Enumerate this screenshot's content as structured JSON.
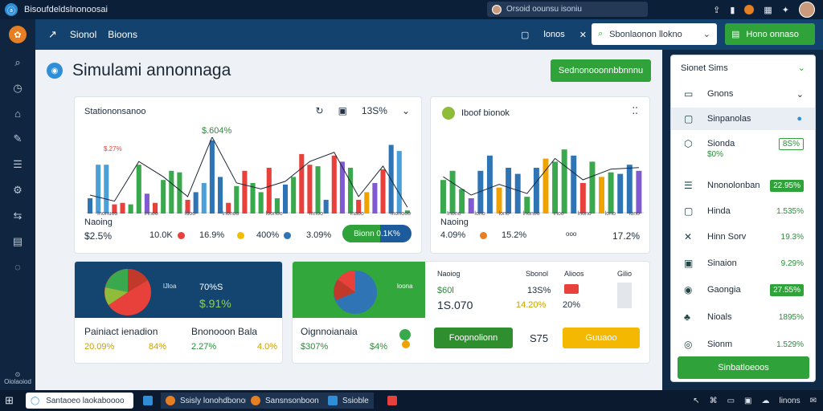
{
  "titlebar": {
    "title": "Bisoufdeldslnonoosai",
    "search": "Orsoid oounsu isoniu"
  },
  "rail": {
    "bottom_label": "Oiolaoiod"
  },
  "topnav": {
    "tab1": "Sionol",
    "tab2": "Bioons",
    "icon_text": "lonos",
    "select": "Sbonlaonon llokno",
    "green_button": "Hono onnaso"
  },
  "page": {
    "title": "Simulami annonnaga",
    "top_button": "Sednonooonnbbnnnu"
  },
  "card1": {
    "title": "Stationonsanoo",
    "peak": "$.604%",
    "marker": "$.27%",
    "pct": "13S%",
    "ticks": [
      "Inonuoo",
      "lnnoo",
      "ldoo",
      "lnonoo",
      "loonoo",
      "lnnoo",
      "Inaoo",
      "lnonooo"
    ],
    "stat_label": "Naoing",
    "stat_value": "$2.5%",
    "s1": "10.0K",
    "s2": "16.9%",
    "s3": "400%",
    "s4": "3.09%",
    "pill": "Bionn 0.1K%",
    "chart_data": {
      "type": "bar",
      "values": [
        10,
        32,
        32,
        6,
        7,
        6,
        32,
        13,
        7,
        22,
        28,
        27,
        9,
        14,
        20,
        48,
        24,
        7,
        18,
        28,
        20,
        14,
        30,
        10,
        19,
        24,
        39,
        32,
        31,
        9,
        38,
        34,
        30,
        9,
        14,
        20,
        29,
        45,
        41,
        2
      ],
      "colors": [
        "#2f74b5",
        "#4ba0d8",
        "#4ba0d8",
        "#e8403a",
        "#e8403a",
        "#3aa84c",
        "#3aa84c",
        "#7f5ad0",
        "#e8403a",
        "#3aa84c",
        "#3aa84c",
        "#3aa84c",
        "#e8403a",
        "#2f74b5",
        "#4ba0d8",
        "#2f74b5",
        "#2f74b5",
        "#e8403a",
        "#3aa84c",
        "#e8403a",
        "#3aa84c",
        "#3aa84c",
        "#e8403a",
        "#3aa84c",
        "#2f74b5",
        "#3aa84c",
        "#e8403a",
        "#e8403a",
        "#3aa84c",
        "#2f74b5",
        "#e8403a",
        "#7f5ad0",
        "#3aa84c",
        "#e8403a",
        "#f0a200",
        "#7f5ad0",
        "#e8403a",
        "#2f74b5",
        "#4ba0d8",
        "#3aa84c"
      ]
    }
  },
  "card2": {
    "title": "Iboof bionok",
    "ticks": [
      "Inono",
      "lono",
      "lono",
      "lnonoo",
      "inoo",
      "lnono",
      "lono",
      "lono"
    ],
    "stat_label": "Naoing",
    "stat_value": "4.09%",
    "s2": "15.2%",
    "s3": "ooo",
    "s4": "17.2%",
    "chart_data": {
      "type": "bar",
      "values": [
        22,
        28,
        16,
        10,
        28,
        38,
        17,
        30,
        26,
        11,
        30,
        36,
        34,
        42,
        38,
        20,
        34,
        24,
        27,
        26,
        32,
        28
      ],
      "colors": [
        "#3aa84c",
        "#3aa84c",
        "#3aa84c",
        "#7f5ad0",
        "#2f74b5",
        "#2f74b5",
        "#f0a200",
        "#2f74b5",
        "#2f74b5",
        "#3aa84c",
        "#2f74b5",
        "#f0a200",
        "#3aa84c",
        "#3aa84c",
        "#2f74b5",
        "#e8403a",
        "#3aa84c",
        "#f0a200",
        "#3aa84c",
        "#2f74b5",
        "#2f74b5",
        "#7f5ad0"
      ]
    }
  },
  "card3": {
    "pie_label": "lJloa",
    "pct": "70%S",
    "value": "$.91%",
    "k1": "Painiact ienadion",
    "k2": "Bnonooon Bala",
    "v1": "20.09%",
    "v2": "84%",
    "v3": "2.27%",
    "v4": "4.0%"
  },
  "card4": {
    "pie_label": "loona",
    "k1": "Oignnoianaia",
    "v1": "$307%",
    "v2": "$4%",
    "col1": "Naoiog",
    "col2": "Sbonol",
    "col3": "Alioos",
    "col4": "Gilio",
    "val1": "$60l",
    "val2": "13S%",
    "val3": "1S.070",
    "val4": "14.20%",
    "val5": "20%",
    "button1": "Foopnolionn",
    "mid": "S75",
    "button2": "Guuaoo"
  },
  "rightpanel": {
    "header": "Sionet Sims",
    "items": [
      {
        "label": "Gnons",
        "value": ""
      },
      {
        "label": "Sinpanolas",
        "value": ""
      },
      {
        "label": "Sionda",
        "value": "8S%",
        "sub": "$0%",
        "style": "outline"
      },
      {
        "label": "Nnonolonban",
        "value": "22.95%",
        "style": "box"
      },
      {
        "label": "Hinda",
        "value": "1.535%"
      },
      {
        "label": "Hinn Sorv",
        "value": "19.3%"
      },
      {
        "label": "Sinaion",
        "value": "9.29%"
      },
      {
        "label": "Gaongia",
        "value": "27.55%",
        "style": "box"
      },
      {
        "label": "Nioals",
        "value": "1895%"
      },
      {
        "label": "Sionm",
        "value": "1.529%"
      }
    ],
    "bottom_button": "Sinbatloeoos"
  },
  "taskbar": {
    "search": "Santaoeo laokaboooo",
    "item1": "Ssisly lonohdbonon",
    "item2": "Sansnsonboon",
    "item3": "Ssioble",
    "clock": "linons"
  }
}
